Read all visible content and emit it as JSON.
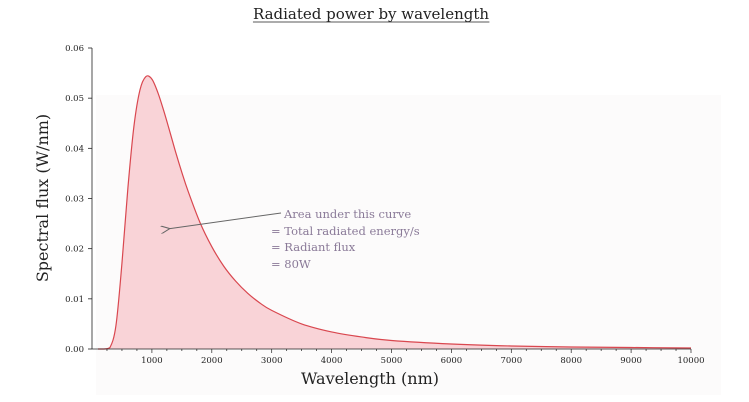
{
  "chart_data": {
    "type": "area",
    "title": "Radiated power by wavelength",
    "xlabel": "Wavelength (nm)",
    "ylabel": "Spectral flux (W/nm)",
    "xlim": [
      0,
      10000
    ],
    "ylim": [
      0,
      0.06
    ],
    "x_ticks": [
      "1000",
      "2000",
      "3000",
      "4000",
      "5000",
      "6000",
      "7000",
      "8000",
      "9000",
      "10000"
    ],
    "y_ticks": [
      "0.00",
      "0.01",
      "0.02",
      "0.03",
      "0.04",
      "0.05",
      "0.06"
    ],
    "grid": false,
    "series": [
      {
        "x": [
          100,
          200,
          300,
          400,
          500,
          600,
          700,
          800,
          900,
          1000,
          1100,
          1200,
          1300,
          1400,
          1500,
          1600,
          1800,
          2000,
          2200,
          2400,
          2600,
          2800,
          3000,
          3500,
          4000,
          4500,
          5000,
          6000,
          7000,
          8000,
          9000,
          10000
        ],
        "y": [
          0.0,
          0.0,
          0.0003,
          0.0047,
          0.0171,
          0.0322,
          0.0444,
          0.0516,
          0.0543,
          0.0538,
          0.0511,
          0.0474,
          0.0433,
          0.0391,
          0.0352,
          0.0316,
          0.0253,
          0.0204,
          0.0165,
          0.0135,
          0.0111,
          0.0092,
          0.0077,
          0.005,
          0.0034,
          0.0024,
          0.0017,
          0.001,
          0.0006,
          0.0004,
          0.0003,
          0.0002
        ],
        "line_color": "#d9474f",
        "fill_color": "#f9d3d7"
      }
    ],
    "annotation": {
      "lines": [
        "Area under this curve",
        "= Total radiated energy/s",
        "= Radiant flux",
        "= 80W"
      ],
      "arrow_target": [
        1300,
        0.024
      ],
      "color": "#8a7a98"
    }
  }
}
